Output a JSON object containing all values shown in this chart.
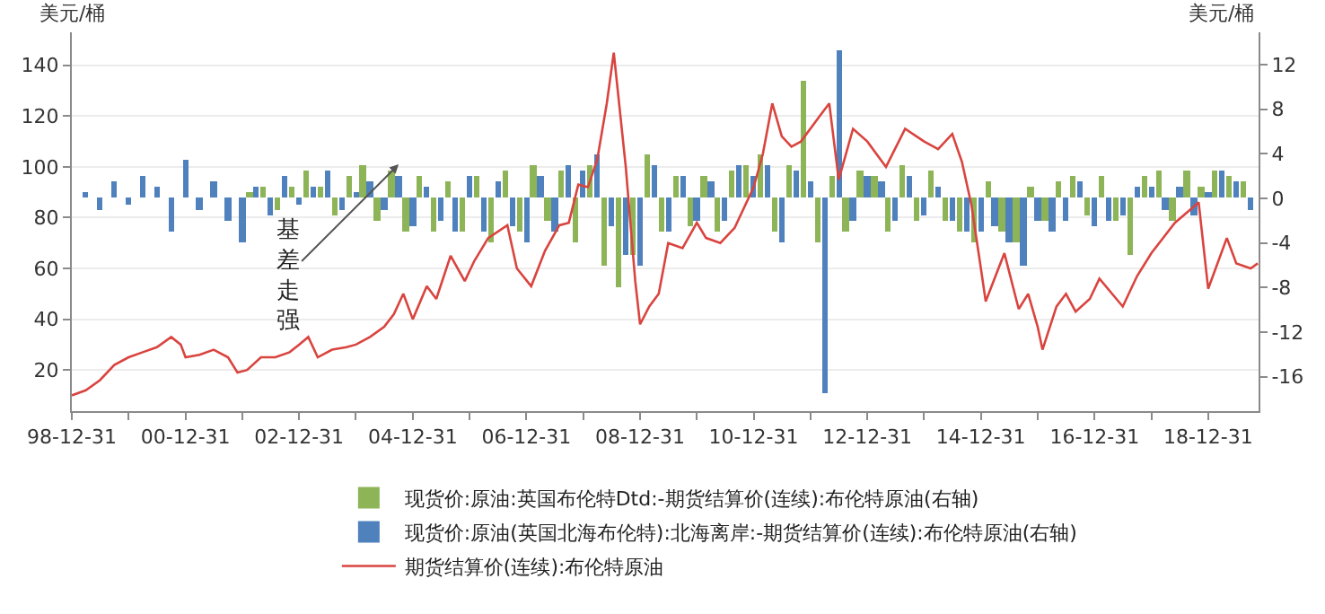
{
  "chart_data": {
    "type": "bar",
    "ylabel": "美元/桶",
    "y2label": "美元/桶",
    "xlim": [
      "1998-12-31",
      "2019-11-20"
    ],
    "xticks": [
      {
        "value": "1998-12-31",
        "label": "98-12-31"
      },
      {
        "value": "1999-12-31",
        "label": null
      },
      {
        "value": "2000-12-31",
        "label": "00-12-31"
      },
      {
        "value": "2001-12-31",
        "label": null
      },
      {
        "value": "2002-12-31",
        "label": "02-12-31"
      },
      {
        "value": "2003-12-31",
        "label": null
      },
      {
        "value": "2004-12-31",
        "label": "04-12-31"
      },
      {
        "value": "2005-12-31",
        "label": null
      },
      {
        "value": "2006-12-31",
        "label": "06-12-31"
      },
      {
        "value": "2007-12-31",
        "label": null
      },
      {
        "value": "2008-12-31",
        "label": "08-12-31"
      },
      {
        "value": "2009-12-31",
        "label": null
      },
      {
        "value": "2010-12-31",
        "label": "10-12-31"
      },
      {
        "value": "2011-12-31",
        "label": null
      },
      {
        "value": "2012-12-31",
        "label": "12-12-31"
      },
      {
        "value": "2013-12-31",
        "label": null
      },
      {
        "value": "2014-12-31",
        "label": "14-12-31"
      },
      {
        "value": "2015-12-31",
        "label": null
      },
      {
        "value": "2016-12-31",
        "label": "16-12-31"
      },
      {
        "value": "2017-12-31",
        "label": null
      },
      {
        "value": "2018-12-31",
        "label": "18-12-31"
      }
    ],
    "ylim": [
      3.8,
      153
    ],
    "yticks": [
      20,
      40,
      60,
      80,
      100,
      120,
      140
    ],
    "y2lim": [
      -19.1,
      14.9
    ],
    "y2ticks": [
      -16,
      -12,
      -8,
      -4,
      0,
      4,
      8,
      12
    ],
    "grid": "y",
    "legend": "bottom",
    "annotations": [
      {
        "text": "基差走强",
        "x": "2004-10-01",
        "y": 101
      }
    ],
    "series": [
      {
        "name": "现货价:原油:英国布伦特Dtd:-期货结算价(连续):布伦特原油(右轴)",
        "axis": "y2",
        "color": "#8db457",
        "x": [
          "2002-02-14",
          "2002-05-15",
          "2002-08-15",
          "2002-11-15",
          "2003-02-14",
          "2003-05-15",
          "2003-08-15",
          "2003-11-15",
          "2004-02-14",
          "2004-05-15",
          "2004-08-15",
          "2004-11-15",
          "2005-02-14",
          "2005-05-15",
          "2005-08-15",
          "2005-11-15",
          "2006-02-14",
          "2006-05-15",
          "2006-08-15",
          "2006-11-15",
          "2007-02-14",
          "2007-05-15",
          "2007-08-15",
          "2007-11-15",
          "2008-02-14",
          "2008-05-15",
          "2008-08-15",
          "2008-11-15",
          "2009-02-14",
          "2009-05-15",
          "2009-08-15",
          "2009-11-15",
          "2010-02-14",
          "2010-05-15",
          "2010-08-15",
          "2010-11-15",
          "2011-02-14",
          "2011-05-15",
          "2011-08-15",
          "2011-11-15",
          "2012-02-14",
          "2012-05-15",
          "2012-08-15",
          "2012-11-15",
          "2013-02-14",
          "2013-05-15",
          "2013-08-15",
          "2013-11-15",
          "2014-02-14",
          "2014-05-15",
          "2014-08-15",
          "2014-11-15",
          "2015-02-14",
          "2015-05-15",
          "2015-08-15",
          "2015-11-15",
          "2016-02-14",
          "2016-05-15",
          "2016-08-15",
          "2016-11-15",
          "2017-02-14",
          "2017-05-15",
          "2017-08-15",
          "2017-11-15",
          "2018-02-14",
          "2018-05-15",
          "2018-08-15",
          "2018-11-15",
          "2019-02-14",
          "2019-05-15",
          "2019-08-15"
        ],
        "values": [
          0.5,
          1,
          -1,
          1,
          2.5,
          1,
          -1.5,
          2,
          3,
          -2,
          2.5,
          -3,
          2,
          -3,
          1.5,
          -3,
          2,
          -4,
          2.5,
          -3,
          3,
          -2,
          2.5,
          -4,
          3,
          -6,
          -8,
          -5,
          4,
          -3,
          2,
          -2.5,
          2,
          -3,
          2.5,
          3,
          4,
          -3,
          3,
          10.5,
          -4,
          2,
          -3,
          2.5,
          2,
          -3,
          3,
          -2,
          2.5,
          -2,
          -3,
          -4,
          1.5,
          -3,
          -4,
          1,
          -2,
          1.5,
          2,
          -1.5,
          2,
          -2,
          -5,
          2,
          2.5,
          -2,
          2.5,
          1,
          2.5,
          2,
          1.5
        ]
      },
      {
        "name": "现货价:原油(英国北海布伦特):北海离岸:-期货结算价(连续):布伦特原油(右轴)",
        "axis": "y2",
        "color": "#4f81bd",
        "x": [
          "1999-03-31",
          "1999-06-30",
          "1999-09-30",
          "1999-12-31",
          "2000-03-31",
          "2000-06-30",
          "2000-09-30",
          "2000-12-31",
          "2001-03-31",
          "2001-06-30",
          "2001-09-30",
          "2001-12-31",
          "2002-03-31",
          "2002-06-30",
          "2002-09-30",
          "2002-12-31",
          "2003-03-31",
          "2003-06-30",
          "2003-09-30",
          "2003-12-31",
          "2004-03-31",
          "2004-06-30",
          "2004-09-30",
          "2004-12-31",
          "2005-03-31",
          "2005-06-30",
          "2005-09-30",
          "2005-12-31",
          "2006-03-31",
          "2006-06-30",
          "2006-09-30",
          "2006-12-31",
          "2007-03-31",
          "2007-06-30",
          "2007-09-30",
          "2007-12-31",
          "2008-03-31",
          "2008-06-30",
          "2008-09-30",
          "2008-12-31",
          "2009-03-31",
          "2009-06-30",
          "2009-09-30",
          "2009-12-31",
          "2010-03-31",
          "2010-06-30",
          "2010-09-30",
          "2010-12-31",
          "2011-03-31",
          "2011-06-30",
          "2011-09-30",
          "2011-12-31",
          "2012-03-31",
          "2012-06-30",
          "2012-09-30",
          "2012-12-31",
          "2013-03-31",
          "2013-06-30",
          "2013-09-30",
          "2013-12-31",
          "2014-03-31",
          "2014-06-30",
          "2014-09-30",
          "2014-12-31",
          "2015-03-31",
          "2015-06-30",
          "2015-09-30",
          "2015-12-31",
          "2016-03-31",
          "2016-06-30",
          "2016-09-30",
          "2016-12-31",
          "2017-03-31",
          "2017-06-30",
          "2017-09-30",
          "2017-12-31",
          "2018-03-31",
          "2018-06-30",
          "2018-09-30",
          "2018-12-31",
          "2019-03-31",
          "2019-06-30",
          "2019-09-30"
        ],
        "values": [
          0.5,
          -1,
          1.5,
          -0.5,
          2,
          1,
          -3,
          3.5,
          -1,
          1.5,
          -2,
          -4,
          1,
          -1.5,
          2,
          -0.5,
          1,
          2.5,
          -1,
          0.5,
          1.5,
          -1,
          2,
          -2.5,
          1,
          -2,
          -3,
          2,
          -3,
          1.5,
          -2.5,
          -4,
          2,
          -3,
          3,
          2.5,
          4,
          -2.5,
          -5,
          -6,
          3,
          -3,
          2,
          -2,
          1.5,
          -2,
          3,
          2,
          3,
          -4,
          2.5,
          1.5,
          -17.5,
          13.3,
          -2,
          2,
          1.5,
          -2,
          2,
          -1.5,
          1,
          -2,
          -3,
          -3,
          -2.5,
          -4,
          -6,
          -2,
          -3,
          -2,
          1.5,
          -2.5,
          -2,
          -1.5,
          1,
          1,
          -1,
          1,
          -1.5,
          0.5,
          2.5,
          1.5,
          -1
        ]
      },
      {
        "name": "期货结算价(连续):布伦特原油",
        "type": "line",
        "axis": "y",
        "color": "#d9443f",
        "marker": "none",
        "line_style": "solid",
        "x": [
          "1998-12-31",
          "1999-03-31",
          "1999-06-30",
          "1999-09-30",
          "1999-12-31",
          "2000-03-31",
          "2000-06-30",
          "2000-09-30",
          "2000-11-30",
          "2000-12-31",
          "2001-03-31",
          "2001-06-30",
          "2001-09-30",
          "2001-11-30",
          "2002-01-31",
          "2002-04-30",
          "2002-07-31",
          "2002-10-31",
          "2002-12-31",
          "2003-02-28",
          "2003-04-30",
          "2003-07-31",
          "2003-10-31",
          "2003-12-31",
          "2004-03-31",
          "2004-06-30",
          "2004-08-31",
          "2004-10-31",
          "2004-12-31",
          "2005-03-31",
          "2005-05-31",
          "2005-08-31",
          "2005-11-30",
          "2006-01-31",
          "2006-04-30",
          "2006-08-31",
          "2006-10-31",
          "2007-01-31",
          "2007-04-30",
          "2007-07-31",
          "2007-09-30",
          "2007-11-30",
          "2008-01-31",
          "2008-03-31",
          "2008-05-31",
          "2008-07-15",
          "2008-09-30",
          "2008-11-30",
          "2008-12-31",
          "2009-02-28",
          "2009-04-30",
          "2009-06-30",
          "2009-09-30",
          "2009-12-31",
          "2010-02-28",
          "2010-05-31",
          "2010-08-31",
          "2010-12-31",
          "2011-02-28",
          "2011-04-30",
          "2011-06-30",
          "2011-08-31",
          "2011-10-31",
          "2012-02-29",
          "2012-04-30",
          "2012-06-30",
          "2012-09-30",
          "2012-12-31",
          "2013-04-30",
          "2013-08-31",
          "2013-12-31",
          "2014-03-31",
          "2014-06-30",
          "2014-08-31",
          "2014-10-31",
          "2014-12-31",
          "2015-01-31",
          "2015-05-31",
          "2015-08-31",
          "2015-10-31",
          "2015-12-31",
          "2016-01-31",
          "2016-04-30",
          "2016-06-30",
          "2016-08-31",
          "2016-11-30",
          "2017-01-31",
          "2017-06-30",
          "2017-09-30",
          "2017-12-31",
          "2018-05-31",
          "2018-10-31",
          "2018-12-31",
          "2019-04-30",
          "2019-06-30",
          "2019-09-30",
          "2019-11-15"
        ],
        "values": [
          10,
          12,
          16,
          22,
          25,
          27,
          29,
          33,
          30,
          25,
          26,
          28,
          25,
          19,
          20,
          25,
          25,
          27,
          30,
          33,
          25,
          28,
          29,
          30,
          33,
          37,
          42,
          50,
          40,
          53,
          48,
          65,
          55,
          63,
          72,
          77,
          60,
          53,
          67,
          77,
          78,
          93,
          92,
          103,
          125,
          145,
          100,
          55,
          38,
          45,
          50,
          70,
          68,
          78,
          72,
          70,
          76,
          92,
          105,
          125,
          112,
          108,
          110,
          120,
          125,
          95,
          115,
          110,
          100,
          115,
          110,
          107,
          113,
          102,
          85,
          60,
          47,
          66,
          44,
          50,
          37,
          28,
          45,
          50,
          43,
          48,
          56,
          45,
          57,
          66,
          78,
          86,
          52,
          72,
          62,
          60,
          62
        ]
      }
    ]
  }
}
